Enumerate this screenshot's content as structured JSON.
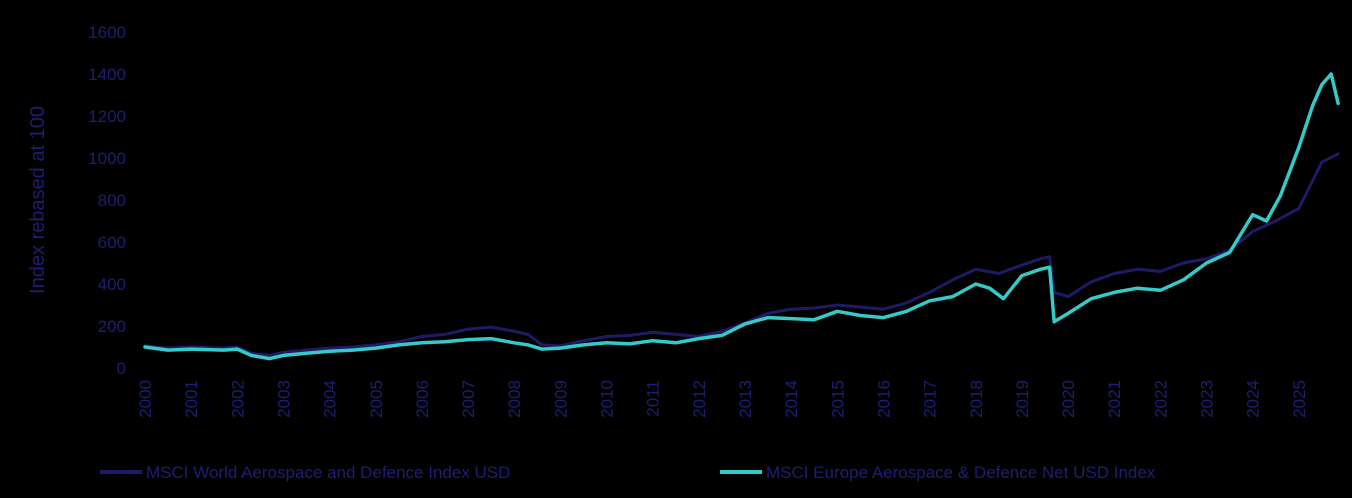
{
  "chart_data": {
    "type": "line",
    "title": "",
    "xlabel": "",
    "ylabel": "Index rebased at 100",
    "ylim": [
      0,
      1600
    ],
    "xlim": [
      2000,
      2026
    ],
    "yticks": [
      "0",
      "200",
      "400",
      "600",
      "800",
      "1000",
      "1200",
      "1400",
      "1600"
    ],
    "xticks": [
      "2000",
      "2001",
      "2002",
      "2003",
      "2004",
      "2005",
      "2006",
      "2007",
      "2008",
      "2009",
      "2010",
      "2011",
      "2012",
      "2013",
      "2014",
      "2015",
      "2016",
      "2017",
      "2018",
      "2019",
      "2020",
      "2021",
      "2022",
      "2023",
      "2024",
      "2025"
    ],
    "grid": false,
    "legend_position": "bottom",
    "colors": {
      "background": "#000000",
      "axis_text": "#1c1f73",
      "world": "#1e1b66",
      "europe": "#35c9c7"
    },
    "series": [
      {
        "name": "MSCI World Aerospace and Defence Index USD",
        "color": "#1e1b66",
        "x": [
          2000.0,
          2000.5,
          2001.0,
          2001.7,
          2002.0,
          2002.3,
          2002.7,
          2003.0,
          2003.5,
          2004.0,
          2004.5,
          2005.0,
          2005.5,
          2006.0,
          2006.5,
          2007.0,
          2007.5,
          2008.0,
          2008.3,
          2008.6,
          2009.0,
          2009.5,
          2010.0,
          2010.5,
          2011.0,
          2011.5,
          2012.0,
          2012.5,
          2013.0,
          2013.5,
          2014.0,
          2014.5,
          2015.0,
          2015.5,
          2016.0,
          2016.5,
          2017.0,
          2017.5,
          2018.0,
          2018.5,
          2019.0,
          2019.4,
          2019.6,
          2019.7,
          2020.0,
          2020.5,
          2021.0,
          2021.5,
          2022.0,
          2022.5,
          2023.0,
          2023.5,
          2024.0,
          2024.5,
          2025.0,
          2025.5,
          2025.85
        ],
        "y": [
          105,
          95,
          100,
          95,
          100,
          70,
          60,
          75,
          85,
          95,
          100,
          110,
          125,
          150,
          160,
          185,
          195,
          175,
          160,
          110,
          105,
          130,
          150,
          155,
          170,
          160,
          150,
          175,
          215,
          260,
          280,
          285,
          300,
          290,
          280,
          310,
          360,
          420,
          470,
          450,
          490,
          520,
          530,
          360,
          340,
          410,
          450,
          470,
          460,
          500,
          520,
          560,
          650,
          700,
          760,
          980,
          1020
        ]
      },
      {
        "name": "MSCI Europe Aerospace & Defence Net USD Index",
        "color": "#35c9c7",
        "x": [
          2000.0,
          2000.5,
          2001.0,
          2001.7,
          2002.0,
          2002.3,
          2002.7,
          2003.0,
          2003.5,
          2004.0,
          2004.5,
          2005.0,
          2005.5,
          2006.0,
          2006.5,
          2007.0,
          2007.5,
          2008.0,
          2008.3,
          2008.6,
          2009.0,
          2009.5,
          2010.0,
          2010.5,
          2011.0,
          2011.5,
          2012.0,
          2012.5,
          2013.0,
          2013.5,
          2014.0,
          2014.5,
          2015.0,
          2015.5,
          2016.0,
          2016.5,
          2017.0,
          2017.5,
          2018.0,
          2018.3,
          2018.6,
          2019.0,
          2019.4,
          2019.6,
          2019.7,
          2020.0,
          2020.5,
          2021.0,
          2021.5,
          2022.0,
          2022.5,
          2023.0,
          2023.5,
          2024.0,
          2024.3,
          2024.6,
          2025.0,
          2025.3,
          2025.5,
          2025.7,
          2025.85
        ],
        "y": [
          100,
          85,
          90,
          85,
          90,
          60,
          45,
          60,
          70,
          80,
          85,
          95,
          110,
          120,
          125,
          135,
          140,
          120,
          110,
          90,
          95,
          110,
          120,
          115,
          130,
          120,
          140,
          155,
          210,
          240,
          235,
          230,
          270,
          250,
          240,
          270,
          320,
          340,
          400,
          380,
          330,
          440,
          470,
          480,
          220,
          260,
          330,
          360,
          380,
          370,
          420,
          500,
          550,
          730,
          700,
          820,
          1050,
          1250,
          1350,
          1400,
          1260
        ]
      }
    ]
  }
}
